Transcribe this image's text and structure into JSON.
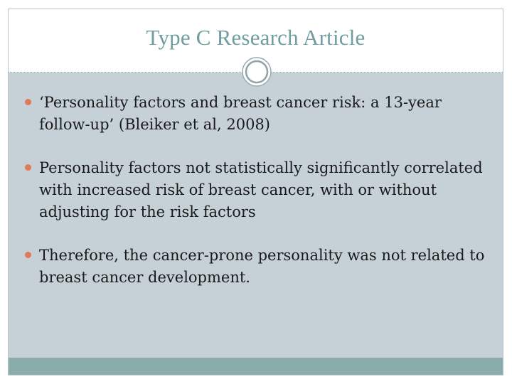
{
  "slide": {
    "title": "Type C Research Article",
    "bullets": [
      "‘Personality factors and breast cancer risk: a 13-year follow-up’  (Bleiker et al, 2008)",
      "Personality factors not statistically significantly correlated with increased risk of breast cancer, with or without adjusting for the risk factors",
      "Therefore, the cancer-prone personality was not related to breast cancer development."
    ]
  },
  "colors": {
    "title": "#6f9da0",
    "content_background": "#c5d0d7",
    "bottom_band": "#8aacab",
    "bullet": "#e07a57"
  }
}
